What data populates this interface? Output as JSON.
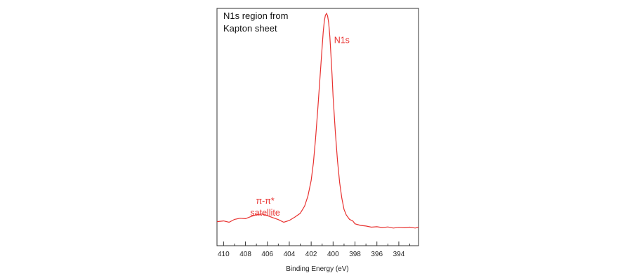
{
  "chart_data": {
    "type": "line",
    "title_lines": [
      "N1s region from",
      "Kapton sheet"
    ],
    "xlabel": "Binding Energy (eV)",
    "ylabel": "",
    "x_reversed": true,
    "xlim": [
      410.6,
      392.2
    ],
    "ylim": [
      0,
      100
    ],
    "x_ticks": [
      410,
      408,
      406,
      404,
      402,
      400,
      398,
      396,
      394
    ],
    "x_minor_step": 1,
    "series": [
      {
        "color": "#e8312f",
        "x": [
          410.6,
          410.0,
          409.5,
          409.0,
          408.5,
          408.0,
          407.5,
          407.0,
          406.5,
          406.0,
          405.5,
          405.0,
          404.5,
          404.0,
          403.5,
          403.0,
          402.6,
          402.3,
          402.0,
          401.8,
          401.6,
          401.4,
          401.2,
          401.0,
          400.9,
          400.8,
          400.7,
          400.6,
          400.5,
          400.4,
          400.3,
          400.2,
          400.1,
          400.0,
          399.8,
          399.6,
          399.4,
          399.2,
          399.0,
          398.8,
          398.5,
          398.2,
          398.0,
          397.5,
          397.0,
          396.5,
          396.0,
          395.5,
          395.0,
          394.5,
          394.0,
          393.5,
          393.0,
          392.5,
          392.2
        ],
        "y": [
          5.5,
          5.8,
          5.2,
          6.5,
          7.0,
          6.8,
          7.8,
          8.6,
          8.9,
          8.2,
          7.3,
          6.4,
          5.2,
          6.0,
          7.5,
          9.2,
          12.5,
          17,
          24,
          32,
          43,
          56,
          70,
          84,
          91,
          96,
          98.5,
          99.3,
          98.2,
          95,
          89,
          81,
          72,
          62,
          46,
          33,
          23,
          16,
          11,
          8.5,
          6.5,
          5.8,
          4.5,
          3.8,
          3.5,
          3.0,
          3.2,
          2.8,
          3.1,
          2.6,
          2.9,
          2.7,
          3.0,
          2.6,
          3.0
        ]
      }
    ],
    "annotations": [
      {
        "lines": [
          "N1s"
        ],
        "x": 399.2,
        "y": 86,
        "color": "#e8312f"
      },
      {
        "lines": [
          "π-π*",
          "satellite"
        ],
        "x": 406.2,
        "y": 13.5,
        "color": "#e8312f"
      }
    ]
  }
}
